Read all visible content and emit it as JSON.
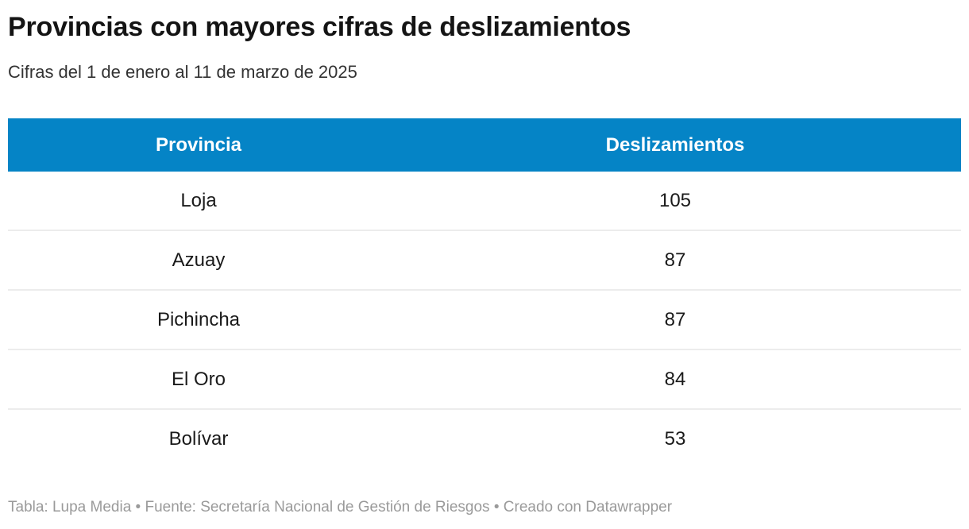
{
  "header": {
    "title": "Provincias con mayores cifras de deslizamientos",
    "subtitle": "Cifras del 1 de enero al 11 de marzo de 2025"
  },
  "table": {
    "columns": {
      "province": "Provincia",
      "count": "Deslizamientos"
    },
    "rows": [
      {
        "province": "Loja",
        "count": "105"
      },
      {
        "province": "Azuay",
        "count": "87"
      },
      {
        "province": "Pichincha",
        "count": "87"
      },
      {
        "province": "El Oro",
        "count": "84"
      },
      {
        "province": "Bolívar",
        "count": "53"
      }
    ]
  },
  "footer": {
    "text": "Tabla: Lupa Media • Fuente: Secretaría Nacional de Gestión de Riesgos • Creado con Datawrapper"
  },
  "colors": {
    "header_background": "#0584c6",
    "header_text": "#ffffff",
    "row_divider": "#ececec",
    "title_text": "#141414",
    "body_text": "#1a1a1a",
    "footer_text": "#9a9a9a"
  },
  "chart_data": {
    "type": "table",
    "title": "Provincias con mayores cifras de deslizamientos",
    "subtitle": "Cifras del 1 de enero al 11 de marzo de 2025",
    "columns": [
      "Provincia",
      "Deslizamientos"
    ],
    "rows": [
      [
        "Loja",
        105
      ],
      [
        "Azuay",
        87
      ],
      [
        "Pichincha",
        87
      ],
      [
        "El Oro",
        84
      ],
      [
        "Bolívar",
        53
      ]
    ],
    "footer": "Tabla: Lupa Media • Fuente: Secretaría Nacional de Gestión de Riesgos • Creado con Datawrapper"
  }
}
